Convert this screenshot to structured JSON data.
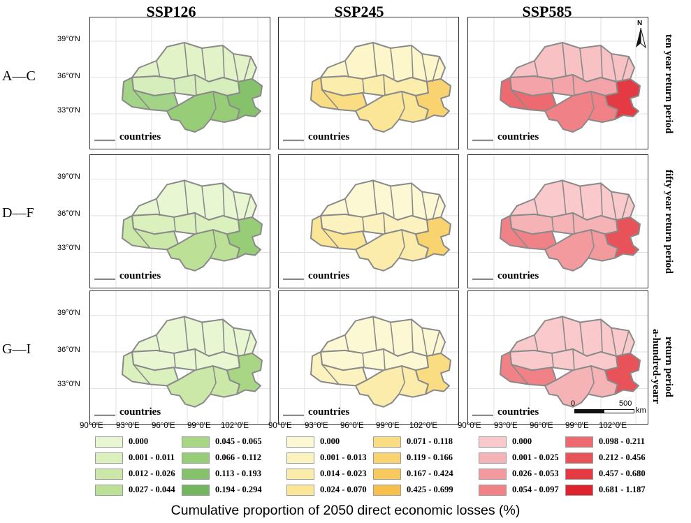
{
  "columns": [
    "SSP126",
    "SSP245",
    "SSP585"
  ],
  "rows": [
    {
      "label": "A—C",
      "period": "ten year return period"
    },
    {
      "label": "D—F",
      "period": "fifty year return period"
    },
    {
      "label": "G—I",
      "period_line1": "a-hundred-yearr",
      "period_line2": "return period"
    }
  ],
  "lat_ticks": [
    "39°0'N",
    "36°0'N",
    "33°0'N"
  ],
  "lon_ticks": [
    "90°0'E",
    "93°0'E",
    "96°0'E",
    "99°0'E",
    "102°0'E"
  ],
  "countries_label": "countries",
  "north_label": "N",
  "scale": {
    "start": "0",
    "end": "500",
    "unit": "km"
  },
  "palettes": {
    "green": [
      "#e8f6d1",
      "#daf0bd",
      "#cbe8a8",
      "#bce095",
      "#a9d685",
      "#98cd78",
      "#86c26b",
      "#74b65f"
    ],
    "yellow": [
      "#fdf8d4",
      "#fcf2c0",
      "#fbecab",
      "#fbe597",
      "#fadc82",
      "#f9d36f",
      "#f8c95c",
      "#f7bf4b"
    ],
    "red": [
      "#f9c9cb",
      "#f6b3b6",
      "#f39a9e",
      "#f08287",
      "#ec6a70",
      "#e85259",
      "#e43a43",
      "#df232e"
    ]
  },
  "panel_fills": [
    [
      {
        "north": "#e2f3c8",
        "center": "#d6eebb",
        "west": "#a3d386",
        "south": "#98cd78",
        "east": "#86c26b"
      },
      {
        "north": "#fdf6cb",
        "center": "#fbeead",
        "west": "#fadc82",
        "south": "#fbe597",
        "east": "#f9d36f"
      },
      {
        "north": "#f8c1c4",
        "center": "#f4a4a8",
        "west": "#ec6a70",
        "south": "#f08287",
        "east": "#e43a43"
      }
    ],
    [
      {
        "north": "#e8f6d1",
        "center": "#daf0bd",
        "west": "#cbe8a8",
        "south": "#bce095",
        "east": "#98cd78"
      },
      {
        "north": "#fdf8d4",
        "center": "#fcf2c0",
        "west": "#fbe597",
        "south": "#fbecab",
        "east": "#f9d36f"
      },
      {
        "north": "#f9c9cb",
        "center": "#f6b3b6",
        "west": "#f08287",
        "south": "#f39a9e",
        "east": "#e85259"
      }
    ],
    [
      {
        "north": "#e8f6d1",
        "center": "#e8f6d1",
        "west": "#daf0bd",
        "south": "#cbe8a8",
        "east": "#a9d685"
      },
      {
        "north": "#fdf8d4",
        "center": "#fdf8d4",
        "west": "#fcf2c0",
        "south": "#fbecab",
        "east": "#fadc82"
      },
      {
        "north": "#f9c9cb",
        "center": "#f9c9cb",
        "west": "#f08287",
        "south": "#f6b3b6",
        "east": "#e85259"
      }
    ]
  ],
  "legends": [
    {
      "palette": "green",
      "items": [
        "0.000",
        "0.001 - 0.011",
        "0.012 - 0.026",
        "0.027 - 0.044",
        "0.045 - 0.065",
        "0.066 - 0.112",
        "0.113 - 0.193",
        "0.194 - 0.294"
      ]
    },
    {
      "palette": "yellow",
      "items": [
        "0.000",
        "0.001 - 0.013",
        "0.014 - 0.023",
        "0.024 - 0.070",
        "0.071 - 0.118",
        "0.119 - 0.166",
        "0.167 - 0.424",
        "0.425 - 0.699"
      ]
    },
    {
      "palette": "red",
      "items": [
        "0.000",
        "0.001 - 0.025",
        "0.026 - 0.053",
        "0.054 - 0.097",
        "0.098 - 0.211",
        "0.212 - 0.456",
        "0.457 - 0.680",
        "0.681 - 1.187"
      ]
    }
  ],
  "bottom_title": "Cumulative proportion of 2050 direct economic losses (%)"
}
